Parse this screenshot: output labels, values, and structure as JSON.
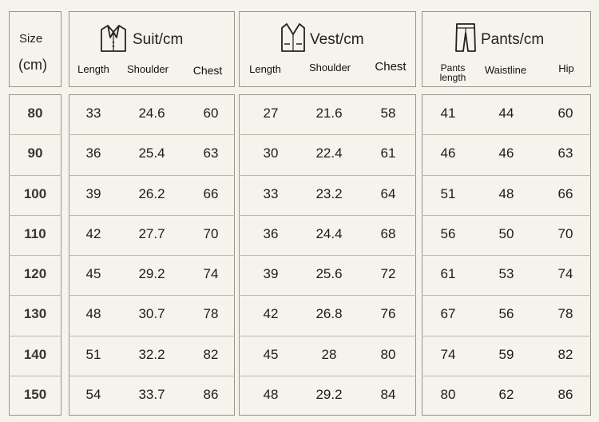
{
  "size_header": {
    "line1": "Size",
    "line2": "(cm)"
  },
  "groups": {
    "suit": {
      "title": "Suit/cm",
      "icon": "suit-jacket-icon",
      "columns": [
        "Length",
        "Shoulder",
        "Chest"
      ]
    },
    "vest": {
      "title": "Vest/cm",
      "icon": "vest-icon",
      "columns": [
        "Length",
        "Shoulder",
        "Chest"
      ]
    },
    "pants": {
      "title": "Pants/cm",
      "icon": "pants-icon",
      "columns": [
        "Pants length",
        "Waistline",
        "Hip"
      ]
    }
  },
  "rows": [
    {
      "size": "80",
      "suit": [
        "33",
        "24.6",
        "60"
      ],
      "vest": [
        "27",
        "21.6",
        "58"
      ],
      "pants": [
        "41",
        "44",
        "60"
      ]
    },
    {
      "size": "90",
      "suit": [
        "36",
        "25.4",
        "63"
      ],
      "vest": [
        "30",
        "22.4",
        "61"
      ],
      "pants": [
        "46",
        "46",
        "63"
      ]
    },
    {
      "size": "100",
      "suit": [
        "39",
        "26.2",
        "66"
      ],
      "vest": [
        "33",
        "23.2",
        "64"
      ],
      "pants": [
        "51",
        "48",
        "66"
      ]
    },
    {
      "size": "110",
      "suit": [
        "42",
        "27.7",
        "70"
      ],
      "vest": [
        "36",
        "24.4",
        "68"
      ],
      "pants": [
        "56",
        "50",
        "70"
      ]
    },
    {
      "size": "120",
      "suit": [
        "45",
        "29.2",
        "74"
      ],
      "vest": [
        "39",
        "25.6",
        "72"
      ],
      "pants": [
        "61",
        "53",
        "74"
      ]
    },
    {
      "size": "130",
      "suit": [
        "48",
        "30.7",
        "78"
      ],
      "vest": [
        "42",
        "26.8",
        "76"
      ],
      "pants": [
        "67",
        "56",
        "78"
      ]
    },
    {
      "size": "140",
      "suit": [
        "51",
        "32.2",
        "82"
      ],
      "vest": [
        "45",
        "28",
        "80"
      ],
      "pants": [
        "74",
        "59",
        "82"
      ]
    },
    {
      "size": "150",
      "suit": [
        "54",
        "33.7",
        "86"
      ],
      "vest": [
        "48",
        "29.2",
        "84"
      ],
      "pants": [
        "80",
        "62",
        "86"
      ]
    }
  ]
}
